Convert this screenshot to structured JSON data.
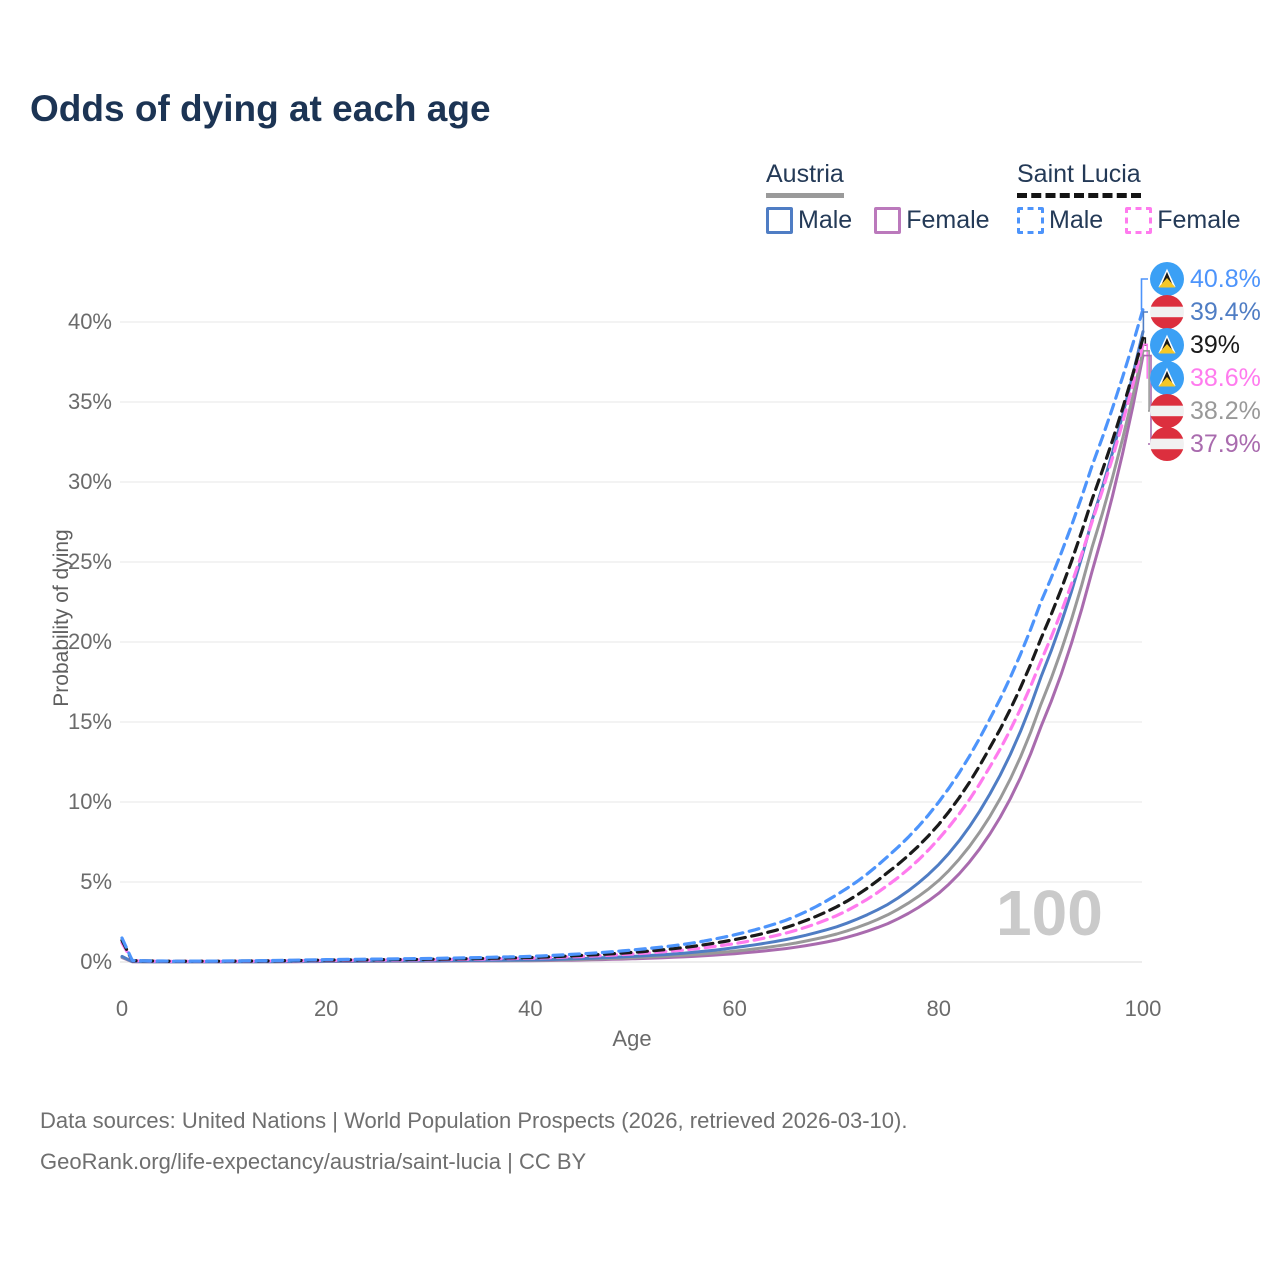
{
  "title": "Odds of dying at each age",
  "watermark": "100",
  "y_axis": {
    "title": "Probability of dying",
    "ticks": [
      {
        "pct": 0,
        "label": "0%"
      },
      {
        "pct": 5,
        "label": "5%"
      },
      {
        "pct": 10,
        "label": "10%"
      },
      {
        "pct": 15,
        "label": "15%"
      },
      {
        "pct": 20,
        "label": "20%"
      },
      {
        "pct": 25,
        "label": "25%"
      },
      {
        "pct": 30,
        "label": "30%"
      },
      {
        "pct": 35,
        "label": "35%"
      },
      {
        "pct": 40,
        "label": "40%"
      }
    ]
  },
  "x_axis": {
    "title": "Age",
    "ticks": [
      {
        "age": 0,
        "label": "0"
      },
      {
        "age": 20,
        "label": "20"
      },
      {
        "age": 40,
        "label": "40"
      },
      {
        "age": 60,
        "label": "60"
      },
      {
        "age": 80,
        "label": "80"
      },
      {
        "age": 100,
        "label": "100"
      }
    ]
  },
  "legend": {
    "groups": [
      {
        "id": "austria",
        "label": "Austria",
        "line_style": "solid",
        "line_color": "#9a9a9a",
        "items": [
          {
            "id": "austria-male",
            "label": "Male",
            "color": "#4f7dc4",
            "box_style": "solid"
          },
          {
            "id": "austria-female",
            "label": "Female",
            "color": "#bb79bc",
            "box_style": "solid"
          }
        ]
      },
      {
        "id": "saint-lucia",
        "label": "Saint Lucia",
        "line_style": "dashed",
        "line_color": "#141414",
        "items": [
          {
            "id": "saint-lucia-male",
            "label": "Male",
            "color": "#4d94fb",
            "box_style": "dashed"
          },
          {
            "id": "saint-lucia-female",
            "label": "Female",
            "color": "#ff7bee",
            "box_style": "dashed"
          }
        ]
      }
    ]
  },
  "footer": {
    "line1": "Data sources: United Nations | World Population Prospects (2026, retrieved 2026-03-10).",
    "line2": "GeoRank.org/life-expectancy/austria/saint-lucia | CC BY"
  },
  "chart_data": {
    "type": "line",
    "title": "Odds of dying at each age",
    "xlabel": "Age",
    "ylabel": "Probability of dying",
    "xlim": [
      0,
      100
    ],
    "ylim_pct": [
      0,
      43
    ],
    "grid": "horizontal",
    "legend_position": "top-right",
    "sample_ages": [
      0,
      1,
      5,
      10,
      20,
      30,
      40,
      50,
      55,
      60,
      65,
      70,
      75,
      80,
      85,
      90,
      95,
      100
    ],
    "series": [
      {
        "id": "austria-female",
        "country": "Austria",
        "sex": "Female",
        "flag": "austria",
        "style": "solid",
        "color": "#a96bae",
        "end_label": "37.9%",
        "end_value_pct": 37.9,
        "values_pct": [
          0.28,
          0.02,
          0.009,
          0.009,
          0.03,
          0.05,
          0.08,
          0.2,
          0.32,
          0.52,
          0.84,
          1.38,
          2.4,
          4.3,
          8.0,
          14.7,
          24.4,
          37.9
        ]
      },
      {
        "id": "austria-both",
        "country": "Austria",
        "sex": "Both sexes",
        "flag": "austria",
        "style": "solid",
        "color": "#999999",
        "end_label": "38.2%",
        "end_value_pct": 38.2,
        "values_pct": [
          0.31,
          0.025,
          0.01,
          0.01,
          0.045,
          0.06,
          0.1,
          0.27,
          0.42,
          0.68,
          1.08,
          1.75,
          2.95,
          5.1,
          9.1,
          16.1,
          25.9,
          38.2
        ]
      },
      {
        "id": "austria-male",
        "country": "Austria",
        "sex": "Male",
        "flag": "austria",
        "style": "solid",
        "color": "#4f7dc4",
        "end_label": "39.4%",
        "end_value_pct": 39.4,
        "values_pct": [
          0.35,
          0.03,
          0.012,
          0.012,
          0.06,
          0.08,
          0.13,
          0.35,
          0.55,
          0.9,
          1.4,
          2.2,
          3.6,
          6.1,
          10.5,
          17.8,
          27.6,
          39.4
        ]
      },
      {
        "id": "saint-lucia-female",
        "country": "Saint Lucia",
        "sex": "Female",
        "flag": "saint-lucia",
        "style": "dashed",
        "color": "#ff7bee",
        "end_label": "38.6%",
        "end_value_pct": 38.6,
        "values_pct": [
          1.2,
          0.08,
          0.04,
          0.045,
          0.1,
          0.14,
          0.24,
          0.5,
          0.75,
          1.15,
          1.8,
          2.9,
          4.8,
          7.7,
          12.2,
          18.8,
          27.5,
          38.6
        ]
      },
      {
        "id": "saint-lucia-both",
        "country": "Saint Lucia",
        "sex": "Both sexes",
        "flag": "saint-lucia",
        "style": "dashed",
        "color": "#1a1a1a",
        "end_label": "39%",
        "end_value_pct": 39.0,
        "values_pct": [
          1.35,
          0.09,
          0.045,
          0.05,
          0.12,
          0.17,
          0.28,
          0.6,
          0.9,
          1.4,
          2.15,
          3.45,
          5.6,
          8.6,
          13.4,
          20.2,
          28.9,
          39.0
        ]
      },
      {
        "id": "saint-lucia-male",
        "country": "Saint Lucia",
        "sex": "Male",
        "flag": "saint-lucia",
        "style": "dashed",
        "color": "#4d94fb",
        "end_label": "40.8%",
        "end_value_pct": 40.8,
        "values_pct": [
          1.5,
          0.1,
          0.05,
          0.06,
          0.15,
          0.22,
          0.35,
          0.75,
          1.1,
          1.7,
          2.6,
          4.2,
          6.6,
          10.0,
          15.2,
          22.5,
          31.0,
          40.8
        ]
      }
    ]
  }
}
